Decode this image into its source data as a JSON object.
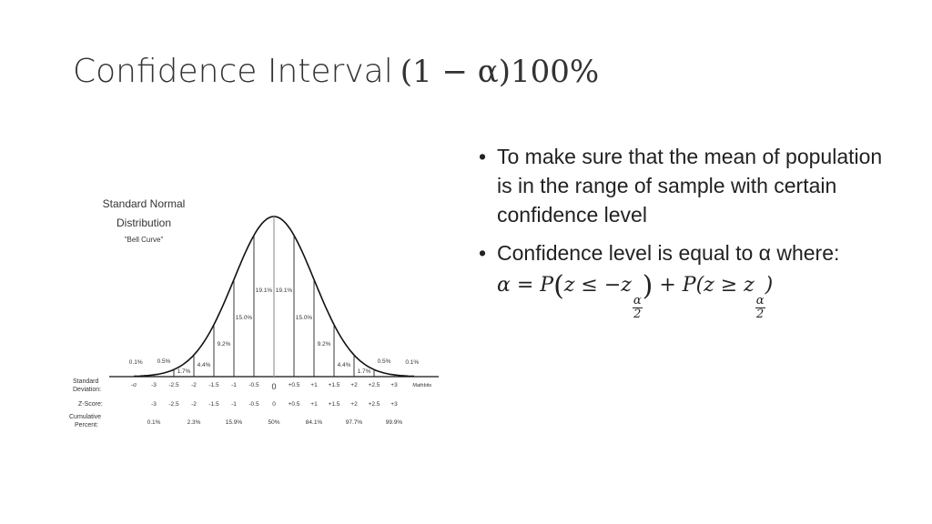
{
  "slide": {
    "title_text": "Confidence Interval",
    "title_math": "(1 − α)100%"
  },
  "figure": {
    "heading_line1": "Standard Normal",
    "heading_line2": "Distribution",
    "heading_line3": "\"Bell Curve\"",
    "area_labels": [
      "0.1%",
      "0.5%",
      "1.7%",
      "4.4%",
      "9.2%",
      "15.0%",
      "19.1%",
      "19.1%",
      "15.0%",
      "9.2%",
      "4.4%",
      "1.7%",
      "0.5%",
      "0.1%"
    ],
    "row_labels": {
      "std_dev_1": "Standard",
      "std_dev_2": "Deviation:",
      "z_score": "Z-Score:",
      "cumulative_1": "Cumulative",
      "cumulative_2": "Percent:"
    },
    "std_dev_ticks": [
      "-σ",
      "-3",
      "-2.5",
      "-2",
      "-1.5",
      "-1",
      "-0.5",
      "0",
      "+0.5",
      "+1",
      "+1.5",
      "+2",
      "+2.5",
      "+3",
      "Mathbits"
    ],
    "z_ticks": [
      "-3",
      "-2.5",
      "-2",
      "-1.5",
      "-1",
      "-0.5",
      "0",
      "+0.5",
      "+1",
      "+1.5",
      "+2",
      "+2.5",
      "+3"
    ],
    "cumulative": [
      "0.1%",
      "2.3%",
      "15.9%",
      "50%",
      "84.1%",
      "97.7%",
      "99.9%"
    ]
  },
  "bullets": {
    "b1": "To make sure that the mean of population is in the range of sample with certain confidence level",
    "b2": "Confidence level is equal to α where:",
    "f_lhs": "α = P",
    "f_mid1": "z ≤ −z",
    "f_plus": " + P(z ≥ z",
    "f_num": "α",
    "f_den": "2",
    "f_close": ")"
  }
}
